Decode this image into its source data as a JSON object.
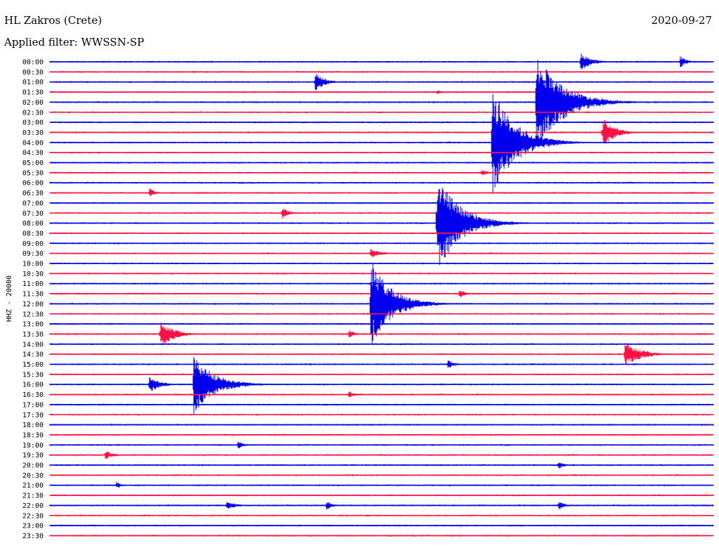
{
  "header": {
    "station": "HL Zakros (Crete)",
    "date": "2020-09-27",
    "filter": "Applied filter: WWSSN-SP"
  },
  "chart_data": {
    "type": "line",
    "title": "HL Zakros (Crete)",
    "date": "2020-09-27",
    "ylabel": "HHZ - 20000",
    "colors": [
      "#0000ee",
      "#ff1144"
    ],
    "row_labels": [
      "00:00",
      "00:30",
      "01:00",
      "01:30",
      "02:00",
      "02:30",
      "03:00",
      "03:30",
      "04:00",
      "04:30",
      "05:00",
      "05:30",
      "06:00",
      "06:30",
      "07:00",
      "07:30",
      "08:00",
      "08:30",
      "09:00",
      "09:30",
      "10:00",
      "10:30",
      "11:00",
      "11:30",
      "12:00",
      "12:30",
      "13:00",
      "13:30",
      "14:00",
      "14:30",
      "15:00",
      "15:30",
      "16:00",
      "16:30",
      "17:00",
      "17:30",
      "18:00",
      "18:30",
      "19:00",
      "19:30",
      "20:00",
      "20:30",
      "21:00",
      "21:30",
      "22:00",
      "22:30",
      "23:00",
      "23:30"
    ],
    "events": [
      {
        "row": 0,
        "minute": 24.0,
        "amp": 0.9,
        "dur": 1.0
      },
      {
        "row": 0,
        "minute": 28.5,
        "amp": 0.6,
        "dur": 0.6
      },
      {
        "row": 2,
        "minute": 12.0,
        "amp": 1.0,
        "dur": 0.9
      },
      {
        "row": 3,
        "minute": 17.5,
        "amp": 0.3,
        "dur": 0.5
      },
      {
        "row": 4,
        "minute": 22.0,
        "amp": 5.0,
        "dur": 2.5
      },
      {
        "row": 7,
        "minute": 25.0,
        "amp": 1.5,
        "dur": 1.2
      },
      {
        "row": 8,
        "minute": 20.0,
        "amp": 5.5,
        "dur": 2.2
      },
      {
        "row": 11,
        "minute": 19.5,
        "amp": 0.4,
        "dur": 0.6
      },
      {
        "row": 13,
        "minute": 4.5,
        "amp": 0.5,
        "dur": 0.5
      },
      {
        "row": 15,
        "minute": 10.5,
        "amp": 0.7,
        "dur": 0.6
      },
      {
        "row": 16,
        "minute": 17.5,
        "amp": 5.0,
        "dur": 2.2
      },
      {
        "row": 19,
        "minute": 14.5,
        "amp": 0.5,
        "dur": 1.0
      },
      {
        "row": 23,
        "minute": 18.5,
        "amp": 0.5,
        "dur": 0.6
      },
      {
        "row": 24,
        "minute": 14.5,
        "amp": 4.5,
        "dur": 2.0
      },
      {
        "row": 27,
        "minute": 5.0,
        "amp": 1.5,
        "dur": 1.2
      },
      {
        "row": 27,
        "minute": 13.5,
        "amp": 0.5,
        "dur": 0.6
      },
      {
        "row": 29,
        "minute": 26.0,
        "amp": 1.3,
        "dur": 1.5
      },
      {
        "row": 30,
        "minute": 18.0,
        "amp": 0.5,
        "dur": 0.6
      },
      {
        "row": 32,
        "minute": 4.5,
        "amp": 0.9,
        "dur": 1.0
      },
      {
        "row": 32,
        "minute": 6.5,
        "amp": 3.0,
        "dur": 2.0
      },
      {
        "row": 33,
        "minute": 13.5,
        "amp": 0.4,
        "dur": 0.6
      },
      {
        "row": 38,
        "minute": 8.5,
        "amp": 0.5,
        "dur": 0.5
      },
      {
        "row": 39,
        "minute": 2.5,
        "amp": 0.5,
        "dur": 0.8
      },
      {
        "row": 40,
        "minute": 23.0,
        "amp": 0.5,
        "dur": 0.5
      },
      {
        "row": 42,
        "minute": 3.0,
        "amp": 0.4,
        "dur": 0.5
      },
      {
        "row": 44,
        "minute": 8.0,
        "amp": 0.4,
        "dur": 1.0
      },
      {
        "row": 44,
        "minute": 12.5,
        "amp": 0.5,
        "dur": 0.6
      },
      {
        "row": 44,
        "minute": 23.0,
        "amp": 0.5,
        "dur": 0.6
      }
    ]
  }
}
